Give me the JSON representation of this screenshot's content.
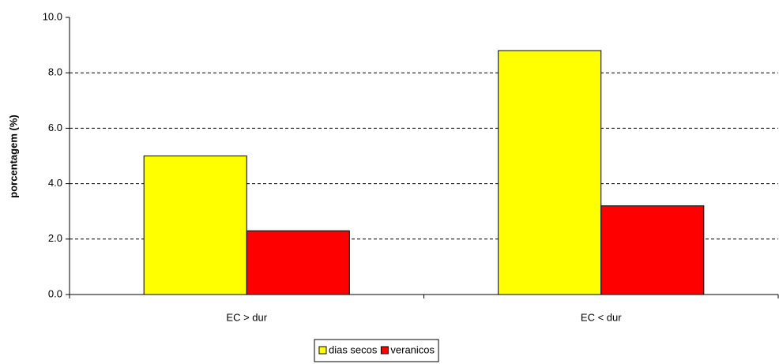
{
  "chart_data": {
    "type": "bar",
    "y_label": "porcentagem (%)",
    "categories": [
      "EC > dur",
      "EC < dur"
    ],
    "series": [
      {
        "name": "dias secos",
        "color": "#ffff00",
        "values": [
          5.0,
          8.8
        ]
      },
      {
        "name": "veranicos",
        "color": "#ff0000",
        "values": [
          2.3,
          3.2
        ]
      }
    ],
    "ylim": [
      0,
      10
    ],
    "yticks": [
      {
        "value": 0,
        "label": "0.0"
      },
      {
        "value": 2,
        "label": "2.0"
      },
      {
        "value": 4,
        "label": "4.0"
      },
      {
        "value": 6,
        "label": "6.0"
      },
      {
        "value": 8,
        "label": "8.0"
      },
      {
        "value": 10,
        "label": "10.0"
      }
    ],
    "grid": true,
    "legend": "bottom"
  }
}
